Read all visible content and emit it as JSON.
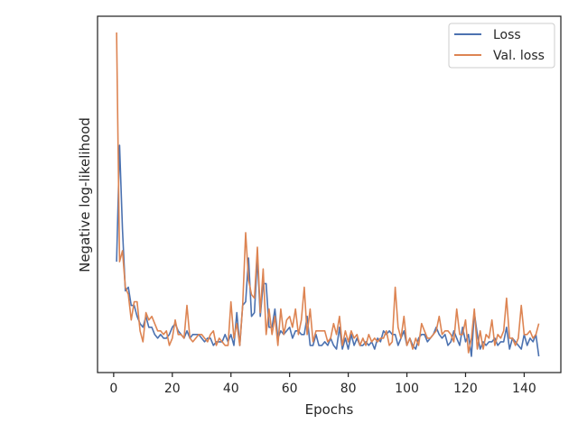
{
  "chart_data": {
    "type": "line",
    "title": "",
    "xlabel": "Epochs",
    "ylabel": "Negative log-likelihood",
    "xlim": [
      -5.5,
      152.5
    ],
    "x_ticks": [
      0,
      20,
      40,
      60,
      80,
      100,
      120,
      140
    ],
    "y_ticks": [],
    "grid": false,
    "legend_position": "top-right",
    "series": [
      {
        "name": "Loss",
        "color": "#4C72B0",
        "x": [
          1,
          2,
          3,
          4,
          5,
          6,
          7,
          8,
          9,
          10,
          11,
          12,
          13,
          14,
          15,
          16,
          17,
          18,
          19,
          20,
          21,
          22,
          23,
          24,
          25,
          26,
          27,
          28,
          29,
          30,
          31,
          32,
          33,
          34,
          35,
          36,
          37,
          38,
          39,
          40,
          41,
          42,
          43,
          44,
          45,
          46,
          47,
          48,
          49,
          50,
          51,
          52,
          53,
          54,
          55,
          56,
          57,
          58,
          59,
          60,
          61,
          62,
          63,
          64,
          65,
          66,
          67,
          68,
          69,
          70,
          71,
          72,
          73,
          74,
          75,
          76,
          77,
          78,
          79,
          80,
          81,
          82,
          83,
          84,
          85,
          86,
          87,
          88,
          89,
          90,
          91,
          92,
          93,
          94,
          95,
          96,
          97,
          98,
          99,
          100,
          101,
          102,
          103,
          104,
          105,
          106,
          107,
          108,
          109,
          110,
          111,
          112,
          113,
          114,
          115,
          116,
          117,
          118,
          119,
          120,
          121,
          122,
          123,
          124,
          125,
          126,
          127,
          128,
          129,
          130,
          131,
          132,
          133,
          134,
          135,
          136,
          137,
          138,
          139,
          140,
          141,
          142,
          143,
          144,
          145
        ],
        "values": [
          5.5,
          8.7,
          6.4,
          4.7,
          4.8,
          4.3,
          4.3,
          4.0,
          3.8,
          3.7,
          4.0,
          3.7,
          3.7,
          3.5,
          3.4,
          3.5,
          3.4,
          3.4,
          3.5,
          3.7,
          3.8,
          3.6,
          3.5,
          3.4,
          3.6,
          3.4,
          3.5,
          3.5,
          3.5,
          3.4,
          3.3,
          3.4,
          3.4,
          3.2,
          3.3,
          3.3,
          3.3,
          3.5,
          3.3,
          3.5,
          3.2,
          4.1,
          3.2,
          4.3,
          4.4,
          5.6,
          4.0,
          4.1,
          5.6,
          4.0,
          4.9,
          4.9,
          3.7,
          3.7,
          4.2,
          3.4,
          3.6,
          3.5,
          3.6,
          3.7,
          3.4,
          3.6,
          3.6,
          3.5,
          3.5,
          4.0,
          3.2,
          3.2,
          3.5,
          3.2,
          3.2,
          3.3,
          3.2,
          3.4,
          3.2,
          3.1,
          3.7,
          3.1,
          3.4,
          3.1,
          3.5,
          3.2,
          3.4,
          3.2,
          3.2,
          3.3,
          3.2,
          3.3,
          3.1,
          3.4,
          3.3,
          3.6,
          3.5,
          3.6,
          3.5,
          3.5,
          3.2,
          3.4,
          3.6,
          3.2,
          3.4,
          3.2,
          3.1,
          3.4,
          3.5,
          3.5,
          3.3,
          3.4,
          3.5,
          3.7,
          3.5,
          3.4,
          3.5,
          3.2,
          3.3,
          3.6,
          3.4,
          3.2,
          3.7,
          3.3,
          3.5,
          2.9,
          4.1,
          3.5,
          3.1,
          3.3,
          3.2,
          3.3,
          3.3,
          3.4,
          3.2,
          3.3,
          3.3,
          3.7,
          3.1,
          3.4,
          3.3,
          3.2,
          3.1,
          3.5,
          3.2,
          3.4,
          3.3,
          3.5,
          2.9
        ]
      },
      {
        "name": "Val. loss",
        "color": "#DD8452",
        "x": [
          1,
          2,
          3,
          4,
          5,
          6,
          7,
          8,
          9,
          10,
          11,
          12,
          13,
          14,
          15,
          16,
          17,
          18,
          19,
          20,
          21,
          22,
          23,
          24,
          25,
          26,
          27,
          28,
          29,
          30,
          31,
          32,
          33,
          34,
          35,
          36,
          37,
          38,
          39,
          40,
          41,
          42,
          43,
          44,
          45,
          46,
          47,
          48,
          49,
          50,
          51,
          52,
          53,
          54,
          55,
          56,
          57,
          58,
          59,
          60,
          61,
          62,
          63,
          64,
          65,
          66,
          67,
          68,
          69,
          70,
          71,
          72,
          73,
          74,
          75,
          76,
          77,
          78,
          79,
          80,
          81,
          82,
          83,
          84,
          85,
          86,
          87,
          88,
          89,
          90,
          91,
          92,
          93,
          94,
          95,
          96,
          97,
          98,
          99,
          100,
          101,
          102,
          103,
          104,
          105,
          106,
          107,
          108,
          109,
          110,
          111,
          112,
          113,
          114,
          115,
          116,
          117,
          118,
          119,
          120,
          121,
          122,
          123,
          124,
          125,
          126,
          127,
          128,
          129,
          130,
          131,
          132,
          133,
          134,
          135,
          136,
          137,
          138,
          139,
          140,
          141,
          142,
          143,
          144,
          145
        ],
        "values": [
          11.8,
          5.5,
          5.8,
          4.8,
          4.6,
          3.9,
          4.4,
          4.4,
          3.6,
          3.3,
          4.1,
          3.9,
          4.0,
          3.8,
          3.6,
          3.6,
          3.5,
          3.6,
          3.2,
          3.4,
          3.9,
          3.5,
          3.5,
          3.4,
          4.3,
          3.4,
          3.3,
          3.4,
          3.5,
          3.5,
          3.4,
          3.3,
          3.5,
          3.6,
          3.2,
          3.4,
          3.3,
          3.2,
          3.2,
          4.4,
          3.4,
          3.8,
          3.2,
          4.3,
          6.3,
          5.0,
          4.6,
          4.5,
          5.9,
          4.1,
          5.3,
          3.5,
          4.2,
          3.5,
          4.0,
          3.2,
          4.2,
          3.5,
          3.9,
          4.0,
          3.7,
          4.2,
          3.5,
          3.9,
          4.8,
          3.5,
          4.2,
          3.3,
          3.6,
          3.6,
          3.6,
          3.6,
          3.3,
          3.4,
          3.8,
          3.5,
          4.0,
          3.2,
          3.6,
          3.3,
          3.6,
          3.4,
          3.5,
          3.2,
          3.4,
          3.2,
          3.5,
          3.3,
          3.4,
          3.3,
          3.4,
          3.4,
          3.6,
          3.2,
          3.3,
          4.8,
          3.7,
          3.4,
          4.0,
          3.2,
          3.4,
          3.1,
          3.4,
          3.2,
          3.8,
          3.6,
          3.4,
          3.4,
          3.5,
          3.6,
          4.0,
          3.5,
          3.6,
          3.6,
          3.5,
          3.3,
          4.2,
          3.5,
          3.5,
          3.9,
          3.0,
          3.4,
          4.2,
          3.1,
          3.6,
          3.1,
          3.5,
          3.4,
          3.9,
          3.2,
          3.5,
          3.4,
          3.6,
          4.5,
          3.4,
          3.4,
          3.2,
          3.4,
          4.3,
          3.5,
          3.5,
          3.6,
          3.4,
          3.5,
          3.8
        ]
      }
    ]
  }
}
